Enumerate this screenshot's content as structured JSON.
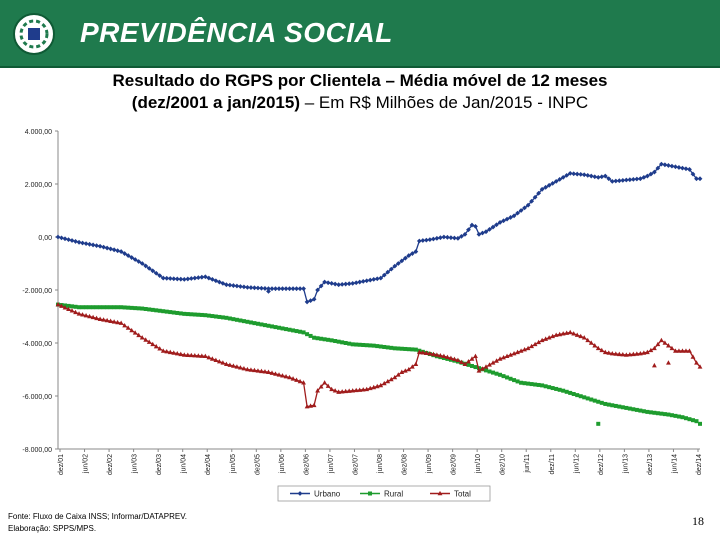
{
  "header": {
    "brand": "PREVIDÊNCIA SOCIAL",
    "bg_color": "#1f7a4d"
  },
  "title": {
    "line1": "Resultado do RGPS por Clientela – Média móvel de 12 meses",
    "line2_bold": "(dez/2001 a jan/2015)",
    "line2_rest": " – Em R$ Milhões de Jan/2015 - INPC"
  },
  "footer": {
    "source": "Fonte: Fluxo de Caixa INSS; Informar/DATAPREV.",
    "prepared": "Elaboração: SPPS/MPS.",
    "page": "18"
  },
  "chart_data": {
    "type": "line",
    "title": "Resultado do RGPS por Clientela – Média móvel de 12 meses (dez/2001 a jan/2015) – Em R$ Milhões de Jan/2015 - INPC",
    "xlabel": "",
    "ylabel": "",
    "ylim": [
      -8000,
      4000
    ],
    "y_ticks": [
      4000,
      2000,
      0,
      -2000,
      -4000,
      -6000,
      -8000
    ],
    "y_tick_labels": [
      "4.000,00",
      "2.000,00",
      "0,00",
      "-2.000,00",
      "-4.000,00",
      "-6.000,00",
      "-8.000,00"
    ],
    "x_ticks": [
      "dez/01",
      "jun/02",
      "dez/02",
      "jun/03",
      "dez/03",
      "jun/04",
      "dez/04",
      "jun/05",
      "dez/05",
      "jun/06",
      "dez/06",
      "jun/07",
      "dez/07",
      "jun/08",
      "dez/08",
      "jun/09",
      "dez/09",
      "jun/10",
      "dez/10",
      "jun/11",
      "dez/11",
      "jun/12",
      "dez/12",
      "jun/13",
      "dez/13",
      "jun/14",
      "dez/14"
    ],
    "x_range": [
      0,
      157
    ],
    "grid": false,
    "legend_position": "bottom",
    "series": [
      {
        "name": "Urbano",
        "color": "#1f3c8c",
        "marker": "diamond",
        "anchors": [
          [
            0,
            0
          ],
          [
            6,
            -200
          ],
          [
            12,
            -350
          ],
          [
            18,
            -550
          ],
          [
            24,
            -1000
          ],
          [
            30,
            -1550
          ],
          [
            36,
            -1600
          ],
          [
            42,
            -1500
          ],
          [
            48,
            -1800
          ],
          [
            54,
            -1900
          ],
          [
            60,
            -1950
          ],
          [
            66,
            -1950
          ],
          [
            70,
            -1950
          ],
          [
            71,
            -2450
          ],
          [
            73,
            -2350
          ],
          [
            74,
            -2000
          ],
          [
            76,
            -1700
          ],
          [
            78,
            -1750
          ],
          [
            80,
            -1800
          ],
          [
            84,
            -1750
          ],
          [
            88,
            -1650
          ],
          [
            92,
            -1550
          ],
          [
            96,
            -1100
          ],
          [
            100,
            -700
          ],
          [
            102,
            -550
          ],
          [
            103,
            -150
          ],
          [
            106,
            -100
          ],
          [
            110,
            0
          ],
          [
            114,
            -50
          ],
          [
            116,
            100
          ],
          [
            118,
            450
          ],
          [
            119,
            400
          ],
          [
            120,
            100
          ],
          [
            122,
            200
          ],
          [
            126,
            550
          ],
          [
            130,
            800
          ],
          [
            134,
            1200
          ],
          [
            138,
            1800
          ],
          [
            142,
            2100
          ],
          [
            146,
            2400
          ],
          [
            150,
            2350
          ],
          [
            154,
            2250
          ],
          [
            156,
            2300
          ],
          [
            158,
            2100
          ],
          [
            162,
            2150
          ],
          [
            166,
            2200
          ],
          [
            168,
            2300
          ],
          [
            170,
            2450
          ],
          [
            172,
            2750
          ],
          [
            176,
            2650
          ],
          [
            178,
            2600
          ],
          [
            180,
            2550
          ],
          [
            182,
            2200
          ],
          [
            183,
            2200
          ]
        ],
        "outliers": [
          [
            60,
            -2050
          ]
        ]
      },
      {
        "name": "Rural",
        "color": "#1e9c2e",
        "marker": "square",
        "anchors": [
          [
            0,
            -2550
          ],
          [
            6,
            -2650
          ],
          [
            12,
            -2650
          ],
          [
            18,
            -2650
          ],
          [
            24,
            -2700
          ],
          [
            30,
            -2800
          ],
          [
            36,
            -2900
          ],
          [
            42,
            -2950
          ],
          [
            48,
            -3050
          ],
          [
            54,
            -3200
          ],
          [
            60,
            -3350
          ],
          [
            66,
            -3500
          ],
          [
            70,
            -3600
          ],
          [
            73,
            -3800
          ],
          [
            78,
            -3900
          ],
          [
            84,
            -4050
          ],
          [
            90,
            -4100
          ],
          [
            96,
            -4200
          ],
          [
            102,
            -4250
          ],
          [
            108,
            -4500
          ],
          [
            114,
            -4700
          ],
          [
            120,
            -4950
          ],
          [
            126,
            -5200
          ],
          [
            132,
            -5500
          ],
          [
            138,
            -5600
          ],
          [
            144,
            -5800
          ],
          [
            150,
            -6050
          ],
          [
            156,
            -6300
          ],
          [
            162,
            -6450
          ],
          [
            168,
            -6600
          ],
          [
            174,
            -6700
          ],
          [
            178,
            -6800
          ],
          [
            182,
            -6950
          ],
          [
            183,
            -7050
          ]
        ],
        "outliers": [
          [
            154,
            -7050
          ]
        ]
      },
      {
        "name": "Total",
        "color": "#a01c1c",
        "marker": "triangle",
        "anchors": [
          [
            0,
            -2550
          ],
          [
            6,
            -2900
          ],
          [
            12,
            -3100
          ],
          [
            18,
            -3250
          ],
          [
            24,
            -3800
          ],
          [
            30,
            -4300
          ],
          [
            36,
            -4450
          ],
          [
            42,
            -4500
          ],
          [
            48,
            -4800
          ],
          [
            54,
            -5000
          ],
          [
            60,
            -5100
          ],
          [
            66,
            -5300
          ],
          [
            70,
            -5500
          ],
          [
            71,
            -6400
          ],
          [
            73,
            -6350
          ],
          [
            74,
            -5800
          ],
          [
            76,
            -5500
          ],
          [
            78,
            -5750
          ],
          [
            80,
            -5850
          ],
          [
            84,
            -5800
          ],
          [
            88,
            -5750
          ],
          [
            92,
            -5600
          ],
          [
            96,
            -5300
          ],
          [
            98,
            -5100
          ],
          [
            100,
            -5000
          ],
          [
            102,
            -4800
          ],
          [
            103,
            -4350
          ],
          [
            106,
            -4400
          ],
          [
            110,
            -4500
          ],
          [
            114,
            -4650
          ],
          [
            116,
            -4800
          ],
          [
            118,
            -4600
          ],
          [
            119,
            -4500
          ],
          [
            120,
            -5050
          ],
          [
            122,
            -4900
          ],
          [
            126,
            -4600
          ],
          [
            130,
            -4400
          ],
          [
            134,
            -4200
          ],
          [
            138,
            -3900
          ],
          [
            142,
            -3700
          ],
          [
            146,
            -3600
          ],
          [
            150,
            -3800
          ],
          [
            154,
            -4200
          ],
          [
            156,
            -4350
          ],
          [
            158,
            -4400
          ],
          [
            162,
            -4450
          ],
          [
            166,
            -4400
          ],
          [
            168,
            -4350
          ],
          [
            170,
            -4200
          ],
          [
            172,
            -3900
          ],
          [
            176,
            -4300
          ],
          [
            178,
            -4300
          ],
          [
            180,
            -4300
          ],
          [
            182,
            -4750
          ],
          [
            183,
            -4900
          ]
        ],
        "outliers": [
          [
            170,
            -4850
          ],
          [
            174,
            -4750
          ]
        ]
      }
    ]
  }
}
